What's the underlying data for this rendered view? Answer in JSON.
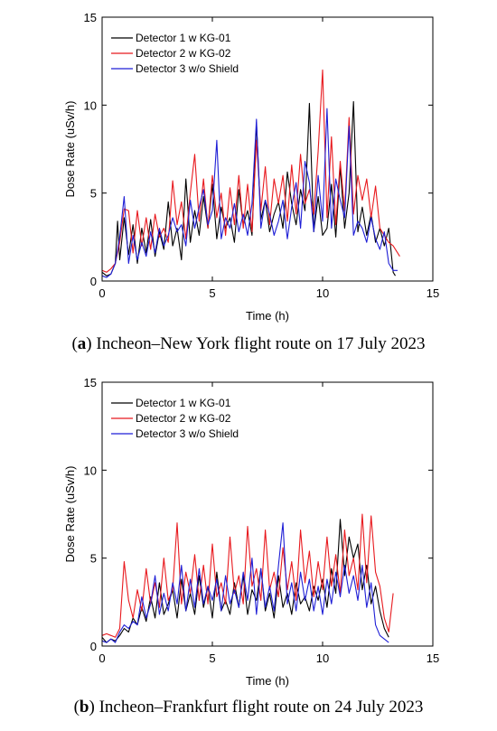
{
  "chart_data": [
    {
      "type": "line",
      "caption_label": "a",
      "caption_text": ") Incheon–New York flight route on 17 July 2023",
      "xlabel": "Time (h)",
      "ylabel": "Dose Rate (uSv/h)",
      "xlim": [
        0,
        15
      ],
      "ylim": [
        0,
        15
      ],
      "xticks": [
        "0",
        "5",
        "10",
        "15"
      ],
      "yticks": [
        "0",
        "5",
        "10",
        "15"
      ],
      "grid": false,
      "legend_position": "top-left",
      "series": [
        {
          "name": "Detector 1 w KG-01",
          "color": "#000000",
          "x": [
            0,
            0.2,
            0.4,
            0.6,
            0.7,
            0.8,
            1.0,
            1.2,
            1.4,
            1.6,
            1.8,
            2.0,
            2.2,
            2.4,
            2.6,
            2.8,
            3.0,
            3.2,
            3.4,
            3.6,
            3.8,
            4.0,
            4.2,
            4.4,
            4.6,
            4.8,
            5.0,
            5.2,
            5.4,
            5.6,
            5.8,
            6.0,
            6.2,
            6.4,
            6.6,
            6.8,
            7.0,
            7.2,
            7.4,
            7.6,
            7.8,
            8.0,
            8.2,
            8.4,
            8.6,
            8.8,
            9.0,
            9.2,
            9.4,
            9.6,
            9.8,
            10.0,
            10.2,
            10.4,
            10.6,
            10.8,
            11.0,
            11.2,
            11.4,
            11.6,
            11.8,
            12.0,
            12.2,
            12.4,
            12.6,
            12.8,
            13.0,
            13.2,
            13.3
          ],
          "y": [
            0.5,
            0.3,
            0.4,
            1.0,
            3.4,
            1.2,
            3.6,
            1.5,
            3.2,
            1.0,
            3.0,
            1.6,
            3.5,
            1.4,
            2.8,
            1.8,
            4.5,
            2.0,
            3.0,
            1.2,
            5.8,
            2.2,
            4.0,
            2.6,
            4.8,
            3.0,
            5.5,
            2.4,
            4.2,
            3.0,
            3.6,
            2.2,
            5.2,
            3.2,
            4.0,
            2.6,
            9.0,
            3.5,
            4.6,
            2.8,
            3.8,
            4.5,
            3.0,
            6.2,
            4.4,
            3.2,
            5.2,
            4.0,
            10.1,
            2.8,
            4.8,
            2.6,
            3.0,
            5.5,
            2.5,
            6.5,
            3.0,
            5.0,
            10.2,
            2.8,
            4.2,
            2.6,
            3.8,
            2.2,
            3.0,
            2.0,
            3.0,
            0.5,
            0.3
          ]
        },
        {
          "name": "Detector 2 w KG-02",
          "color": "#e8191e",
          "x": [
            0,
            0.2,
            0.4,
            0.6,
            0.8,
            1.0,
            1.2,
            1.4,
            1.6,
            1.8,
            2.0,
            2.2,
            2.4,
            2.6,
            2.8,
            3.0,
            3.2,
            3.4,
            3.6,
            3.8,
            4.0,
            4.2,
            4.4,
            4.6,
            4.8,
            5.0,
            5.2,
            5.4,
            5.6,
            5.8,
            6.0,
            6.2,
            6.4,
            6.6,
            6.8,
            7.0,
            7.2,
            7.4,
            7.6,
            7.8,
            8.0,
            8.2,
            8.4,
            8.6,
            8.8,
            9.0,
            9.2,
            9.4,
            9.6,
            9.8,
            10.0,
            10.2,
            10.4,
            10.6,
            10.8,
            11.0,
            11.2,
            11.4,
            11.6,
            11.8,
            12.0,
            12.2,
            12.4,
            12.6,
            12.8,
            13.0,
            13.2,
            13.5
          ],
          "y": [
            0.6,
            0.5,
            0.7,
            1.0,
            2.2,
            4.1,
            4.0,
            1.6,
            4.0,
            2.0,
            3.6,
            1.8,
            3.8,
            2.5,
            3.0,
            2.2,
            5.7,
            3.2,
            4.5,
            2.4,
            5.0,
            7.2,
            3.4,
            5.8,
            3.0,
            6.0,
            3.6,
            5.0,
            2.6,
            5.3,
            3.2,
            6.0,
            3.0,
            5.5,
            2.8,
            8.0,
            4.0,
            6.5,
            3.2,
            5.8,
            4.4,
            6.0,
            3.4,
            6.6,
            3.8,
            7.2,
            4.4,
            5.2,
            3.8,
            7.4,
            12.0,
            3.6,
            8.2,
            3.2,
            6.8,
            4.0,
            9.3,
            3.8,
            6.0,
            4.6,
            5.8,
            3.6,
            5.4,
            3.0,
            2.6,
            2.2,
            2.0,
            1.4
          ]
        },
        {
          "name": "Detector 3 w/o Shield",
          "color": "#1f1fd6",
          "x": [
            0,
            0.2,
            0.4,
            0.6,
            0.8,
            1.0,
            1.2,
            1.4,
            1.6,
            1.8,
            2.0,
            2.2,
            2.4,
            2.6,
            2.8,
            3.0,
            3.2,
            3.4,
            3.6,
            3.8,
            4.0,
            4.2,
            4.4,
            4.6,
            4.8,
            5.0,
            5.2,
            5.4,
            5.6,
            5.8,
            6.0,
            6.2,
            6.4,
            6.6,
            6.8,
            7.0,
            7.2,
            7.4,
            7.6,
            7.8,
            8.0,
            8.2,
            8.4,
            8.6,
            8.8,
            9.0,
            9.2,
            9.4,
            9.6,
            9.8,
            10.0,
            10.2,
            10.4,
            10.6,
            10.8,
            11.0,
            11.2,
            11.4,
            11.6,
            11.8,
            12.0,
            12.2,
            12.4,
            12.6,
            12.8,
            13.0,
            13.2,
            13.4
          ],
          "y": [
            0.3,
            0.2,
            0.4,
            1.0,
            2.5,
            4.8,
            1.0,
            2.6,
            1.2,
            2.2,
            1.4,
            2.8,
            1.6,
            3.0,
            2.0,
            2.6,
            3.6,
            2.8,
            3.2,
            2.0,
            4.6,
            3.0,
            4.2,
            5.2,
            3.2,
            4.0,
            8.0,
            2.4,
            3.6,
            3.0,
            4.4,
            2.8,
            3.8,
            2.6,
            4.4,
            9.2,
            3.0,
            4.6,
            3.8,
            2.6,
            3.4,
            4.6,
            2.4,
            4.2,
            5.6,
            3.0,
            6.8,
            5.6,
            2.8,
            6.0,
            3.4,
            9.8,
            3.0,
            5.8,
            4.6,
            3.6,
            8.8,
            2.6,
            3.4,
            3.0,
            2.2,
            3.6,
            2.4,
            1.8,
            2.8,
            1.0,
            0.6,
            0.6
          ]
        }
      ]
    },
    {
      "type": "line",
      "caption_label": "b",
      "caption_text": ") Incheon–Frankfurt flight route on 24 July 2023",
      "xlabel": "Time (h)",
      "ylabel": "Dose Rate (uSv/h)",
      "xlim": [
        0,
        15
      ],
      "ylim": [
        0,
        15
      ],
      "xticks": [
        "0",
        "5",
        "10",
        "15"
      ],
      "yticks": [
        "0",
        "5",
        "10",
        "15"
      ],
      "grid": false,
      "legend_position": "top-left",
      "series": [
        {
          "name": "Detector 1 w KG-01",
          "color": "#000000",
          "x": [
            0,
            0.2,
            0.4,
            0.6,
            0.8,
            1.0,
            1.2,
            1.4,
            1.6,
            1.8,
            2.0,
            2.2,
            2.4,
            2.6,
            2.8,
            3.0,
            3.2,
            3.4,
            3.6,
            3.8,
            4.0,
            4.2,
            4.4,
            4.6,
            4.8,
            5.0,
            5.2,
            5.4,
            5.6,
            5.8,
            6.0,
            6.2,
            6.4,
            6.6,
            6.8,
            7.0,
            7.2,
            7.4,
            7.6,
            7.8,
            8.0,
            8.2,
            8.4,
            8.6,
            8.8,
            9.0,
            9.2,
            9.4,
            9.6,
            9.8,
            10.0,
            10.2,
            10.4,
            10.6,
            10.8,
            11.0,
            11.2,
            11.4,
            11.6,
            11.8,
            12.0,
            12.2,
            12.4,
            12.6,
            12.8,
            13.0
          ],
          "y": [
            0.5,
            0.2,
            0.4,
            0.3,
            0.6,
            1.0,
            0.8,
            1.6,
            1.2,
            2.2,
            1.4,
            2.8,
            1.6,
            3.6,
            1.8,
            2.4,
            3.2,
            1.6,
            3.8,
            2.0,
            3.0,
            1.8,
            4.0,
            2.2,
            3.4,
            1.6,
            4.2,
            2.0,
            2.6,
            1.8,
            3.6,
            2.2,
            4.0,
            1.8,
            3.2,
            2.6,
            4.4,
            2.0,
            3.0,
            1.6,
            4.0,
            2.2,
            3.0,
            1.8,
            3.6,
            2.4,
            2.8,
            2.0,
            3.4,
            2.6,
            3.8,
            2.2,
            4.4,
            3.0,
            7.2,
            4.0,
            6.2,
            5.0,
            5.8,
            3.2,
            4.6,
            2.4,
            3.4,
            2.0,
            1.0,
            0.5
          ]
        },
        {
          "name": "Detector 2 w KG-02",
          "color": "#e8191e",
          "x": [
            0,
            0.2,
            0.4,
            0.6,
            0.8,
            1.0,
            1.2,
            1.4,
            1.6,
            1.8,
            2.0,
            2.2,
            2.4,
            2.6,
            2.8,
            3.0,
            3.2,
            3.4,
            3.6,
            3.8,
            4.0,
            4.2,
            4.4,
            4.6,
            4.8,
            5.0,
            5.2,
            5.4,
            5.6,
            5.8,
            6.0,
            6.2,
            6.4,
            6.6,
            6.8,
            7.0,
            7.2,
            7.4,
            7.6,
            7.8,
            8.0,
            8.2,
            8.4,
            8.6,
            8.8,
            9.0,
            9.2,
            9.4,
            9.6,
            9.8,
            10.0,
            10.2,
            10.4,
            10.6,
            10.8,
            11.0,
            11.2,
            11.4,
            11.6,
            11.8,
            12.0,
            12.2,
            12.4,
            12.6,
            12.8,
            13.0,
            13.2
          ],
          "y": [
            0.6,
            0.7,
            0.6,
            0.5,
            1.0,
            4.8,
            2.6,
            1.6,
            3.2,
            2.0,
            4.4,
            2.4,
            3.6,
            2.2,
            5.0,
            2.6,
            3.2,
            7.0,
            2.4,
            4.2,
            3.0,
            5.2,
            2.6,
            4.6,
            2.4,
            5.8,
            2.8,
            3.6,
            2.4,
            6.2,
            3.0,
            4.0,
            2.4,
            6.8,
            3.4,
            4.4,
            2.6,
            6.6,
            3.2,
            4.2,
            2.8,
            5.6,
            3.2,
            4.8,
            2.6,
            6.6,
            3.6,
            5.4,
            2.8,
            4.8,
            3.2,
            6.2,
            3.4,
            5.2,
            3.0,
            6.6,
            4.0,
            5.0,
            3.2,
            7.5,
            3.6,
            7.4,
            4.2,
            3.4,
            1.6,
            0.8,
            3.0
          ]
        },
        {
          "name": "Detector 3 w/o Shield",
          "color": "#1f1fd6",
          "x": [
            0,
            0.2,
            0.4,
            0.6,
            0.8,
            1.0,
            1.2,
            1.4,
            1.6,
            1.8,
            2.0,
            2.2,
            2.4,
            2.6,
            2.8,
            3.0,
            3.2,
            3.4,
            3.6,
            3.8,
            4.0,
            4.2,
            4.4,
            4.6,
            4.8,
            5.0,
            5.2,
            5.4,
            5.6,
            5.8,
            6.0,
            6.2,
            6.4,
            6.6,
            6.8,
            7.0,
            7.2,
            7.4,
            7.6,
            7.8,
            8.0,
            8.2,
            8.4,
            8.6,
            8.8,
            9.0,
            9.2,
            9.4,
            9.6,
            9.8,
            10.0,
            10.2,
            10.4,
            10.6,
            10.8,
            11.0,
            11.2,
            11.4,
            11.6,
            11.8,
            12.0,
            12.2,
            12.4,
            12.6,
            12.8,
            13.0
          ],
          "y": [
            0.3,
            0.2,
            0.4,
            0.2,
            0.8,
            1.2,
            1.0,
            1.4,
            1.2,
            2.8,
            1.6,
            2.4,
            4.0,
            1.8,
            3.0,
            2.0,
            3.6,
            2.4,
            4.6,
            2.0,
            3.8,
            2.2,
            4.4,
            2.4,
            3.4,
            2.6,
            3.8,
            2.0,
            4.0,
            2.4,
            3.2,
            2.2,
            4.2,
            2.6,
            5.0,
            1.8,
            4.4,
            2.2,
            3.4,
            2.0,
            4.6,
            7.0,
            2.4,
            3.6,
            2.0,
            4.2,
            2.6,
            3.8,
            2.0,
            3.4,
            1.8,
            3.8,
            2.4,
            4.2,
            2.8,
            4.6,
            3.0,
            4.0,
            2.6,
            4.6,
            2.2,
            3.6,
            1.2,
            0.6,
            0.4,
            0.2
          ]
        }
      ]
    }
  ]
}
